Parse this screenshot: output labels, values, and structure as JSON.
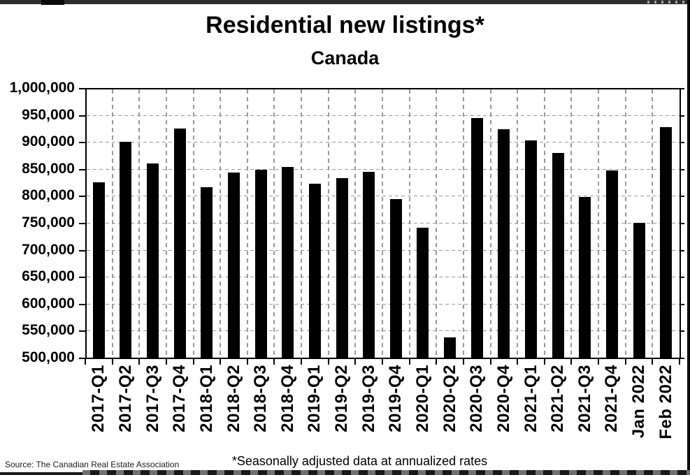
{
  "window": {
    "top_bar_color": "#2d2d2d",
    "right_edge_color": "#0a0a0a",
    "bottom_bar_color": "#191919"
  },
  "chart_data": {
    "type": "bar",
    "title": "Residential new listings*",
    "subtitle": "Canada",
    "source": "Source: The Canadian Real Estate Association",
    "footnote": "*Seasonally adjusted data at annualized rates",
    "categories": [
      "2017-Q1",
      "2017-Q2",
      "2017-Q3",
      "2017-Q4",
      "2018-Q1",
      "2018-Q2",
      "2018-Q3",
      "2018-Q4",
      "2019-Q1",
      "2019-Q2",
      "2019-Q3",
      "2019-Q4",
      "2020-Q1",
      "2020-Q2",
      "2020-Q3",
      "2020-Q4",
      "2021-Q1",
      "2021-Q2",
      "2021-Q3",
      "2021-Q4",
      "Jan 2022",
      "Feb 2022"
    ],
    "values": [
      825000,
      900000,
      860000,
      925000,
      816000,
      843000,
      849000,
      854000,
      822000,
      833000,
      845000,
      794000,
      741000,
      537000,
      944000,
      923000,
      903000,
      879000,
      798000,
      847000,
      750000,
      928000
    ],
    "ylim": [
      500000,
      1000000
    ],
    "ytick_step": 50000,
    "ytick_labels": [
      "500,000",
      "550,000",
      "600,000",
      "650,000",
      "700,000",
      "750,000",
      "800,000",
      "850,000",
      "900,000",
      "950,000",
      "1,000,000"
    ],
    "xlabel": "",
    "ylabel": "",
    "bar_color": "#000000",
    "grid": "dashed",
    "gridline_color": "#999999",
    "legend_position": "none"
  }
}
